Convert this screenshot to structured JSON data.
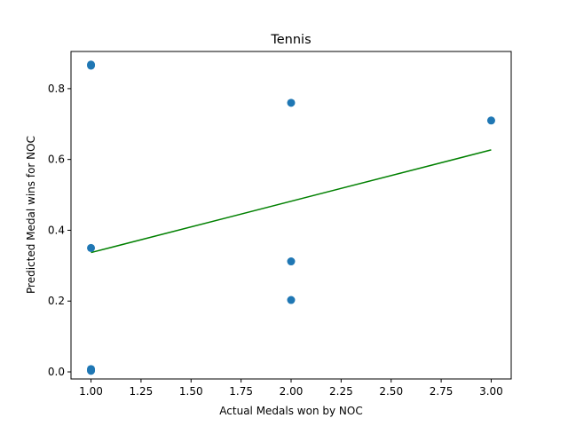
{
  "chart_data": {
    "type": "scatter",
    "title": "Tennis",
    "xlabel": "Actual Medals won by NOC",
    "ylabel": "Predicted Medal wins for NOC",
    "xlim": [
      0.9,
      3.1
    ],
    "ylim": [
      -0.02,
      0.905
    ],
    "xticks": [
      "1.00",
      "1.25",
      "1.50",
      "1.75",
      "2.00",
      "2.25",
      "2.50",
      "2.75",
      "3.00"
    ],
    "xtick_values": [
      1.0,
      1.25,
      1.5,
      1.75,
      2.0,
      2.25,
      2.5,
      2.75,
      3.0
    ],
    "yticks": [
      "0.0",
      "0.2",
      "0.4",
      "0.6",
      "0.8"
    ],
    "ytick_values": [
      0.0,
      0.2,
      0.4,
      0.6,
      0.8
    ],
    "grid": false,
    "point_color": "#1f77b4",
    "line_color": "#008000",
    "points": [
      {
        "x": 1.0,
        "y": 0.868
      },
      {
        "x": 1.0,
        "y": 0.865
      },
      {
        "x": 1.0,
        "y": 0.35
      },
      {
        "x": 1.0,
        "y": 0.008
      },
      {
        "x": 1.0,
        "y": 0.005
      },
      {
        "x": 1.0,
        "y": 0.003
      },
      {
        "x": 2.0,
        "y": 0.76
      },
      {
        "x": 2.0,
        "y": 0.312
      },
      {
        "x": 2.0,
        "y": 0.203
      },
      {
        "x": 3.0,
        "y": 0.71
      }
    ],
    "trend_line": [
      {
        "x": 1.0,
        "y": 0.337
      },
      {
        "x": 3.0,
        "y": 0.627
      }
    ]
  }
}
